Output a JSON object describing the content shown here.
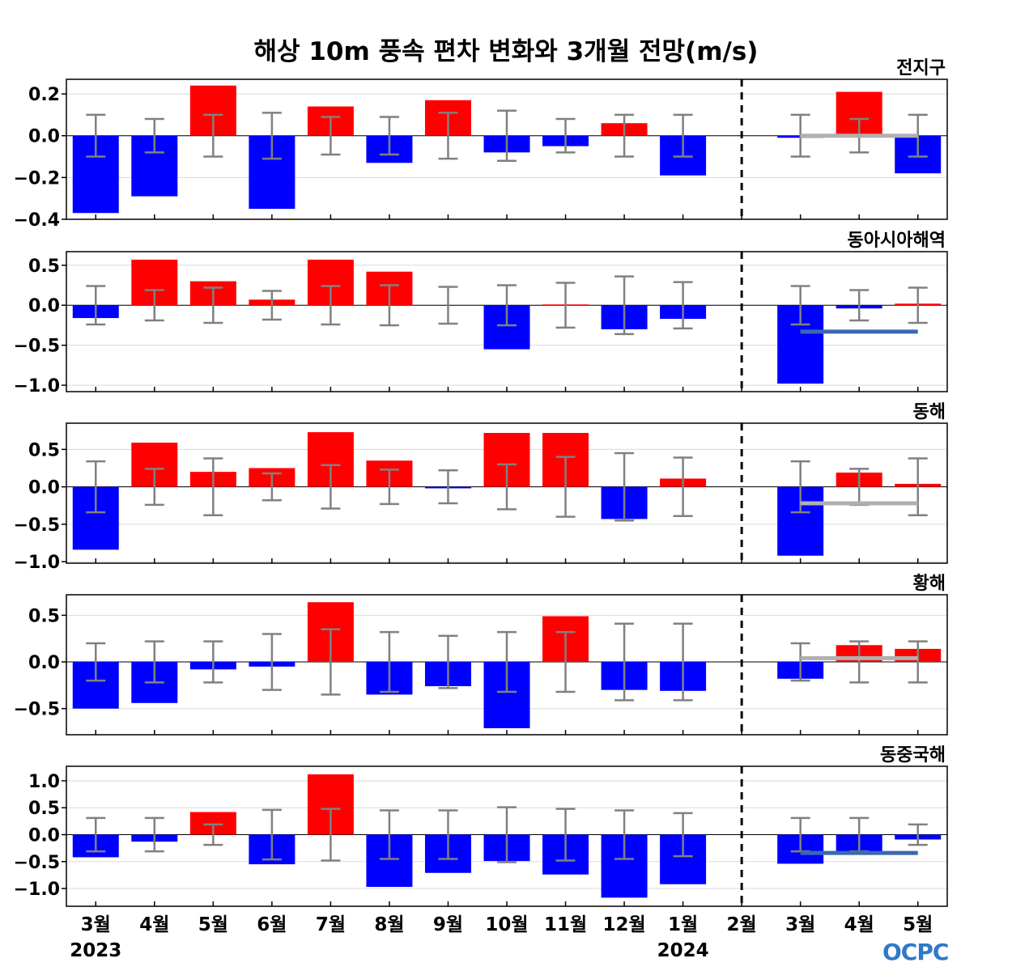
{
  "title": "해상 10m 풍속 편차 변화와 3개월 전망(m/s)",
  "logo_text": "OCPC",
  "chart_data": {
    "type": "bar",
    "categories": [
      "3월",
      "4월",
      "5월",
      "6월",
      "7월",
      "8월",
      "9월",
      "10월",
      "11월",
      "12월",
      "1월",
      "2월",
      "3월",
      "4월",
      "5월"
    ],
    "year_labels": [
      {
        "label": "2023",
        "category_index": 0
      },
      {
        "label": "2024",
        "category_index": 10
      }
    ],
    "forecast_divider_after_index": 11,
    "colors": {
      "positive": "#ff0000",
      "negative": "#0000ff",
      "error_bar": "#808080",
      "grid": "#d9d9d9",
      "divider": "#000000"
    },
    "panels": [
      {
        "name": "전지구",
        "ylim": [
          -0.4,
          0.27
        ],
        "yticks": [
          0.2,
          0.0,
          -0.2,
          -0.4
        ],
        "tick_labels": [
          "0.2",
          "0.0",
          "−0.2",
          "−0.4"
        ],
        "values": [
          -0.37,
          -0.29,
          0.24,
          -0.35,
          0.14,
          -0.13,
          0.17,
          -0.08,
          -0.05,
          0.06,
          -0.19,
          0.0,
          -0.01,
          0.21,
          -0.18
        ],
        "error_bounds": [
          0.1,
          0.08,
          0.1,
          0.11,
          0.09,
          0.09,
          0.11,
          0.12,
          0.08,
          0.1,
          0.1,
          null,
          0.1,
          0.08,
          0.1
        ],
        "forecast_line": {
          "value": 0.0,
          "from_index": 12,
          "to_index": 14,
          "color": "#b0b0b0"
        }
      },
      {
        "name": "동아시아해역",
        "ylim": [
          -1.08,
          0.67
        ],
        "yticks": [
          0.5,
          0.0,
          -0.5,
          -1.0
        ],
        "tick_labels": [
          "0.5",
          "0.0",
          "−0.5",
          "−1.0"
        ],
        "values": [
          -0.16,
          0.57,
          0.3,
          0.07,
          0.57,
          0.42,
          0.0,
          -0.55,
          0.01,
          -0.3,
          -0.17,
          0.0,
          -0.98,
          -0.04,
          0.02
        ],
        "error_bounds": [
          0.24,
          0.19,
          0.22,
          0.18,
          0.24,
          0.25,
          0.23,
          0.25,
          0.28,
          0.36,
          0.29,
          null,
          0.24,
          0.19,
          0.22
        ],
        "forecast_line": {
          "value": -0.33,
          "from_index": 12,
          "to_index": 14,
          "color": "#3a68b0"
        }
      },
      {
        "name": "동해",
        "ylim": [
          -1.02,
          0.85
        ],
        "yticks": [
          0.5,
          0.0,
          -0.5,
          -1.0
        ],
        "tick_labels": [
          "0.5",
          "0.0",
          "−0.5",
          "−1.0"
        ],
        "values": [
          -0.84,
          0.59,
          0.2,
          0.25,
          0.73,
          0.35,
          -0.02,
          0.72,
          0.72,
          -0.43,
          0.11,
          0.0,
          -0.92,
          0.19,
          0.04
        ],
        "error_bounds": [
          0.34,
          0.24,
          0.38,
          0.18,
          0.29,
          0.23,
          0.22,
          0.3,
          0.4,
          0.45,
          0.39,
          null,
          0.34,
          0.24,
          0.38
        ],
        "forecast_line": {
          "value": -0.22,
          "from_index": 12,
          "to_index": 14,
          "color": "#b0b0b0"
        }
      },
      {
        "name": "황해",
        "ylim": [
          -0.78,
          0.72
        ],
        "yticks": [
          0.5,
          0.0,
          -0.5
        ],
        "tick_labels": [
          "0.5",
          "0.0",
          "−0.5"
        ],
        "values": [
          -0.5,
          -0.44,
          -0.08,
          -0.05,
          0.64,
          -0.35,
          -0.26,
          -0.71,
          0.49,
          -0.3,
          -0.31,
          0.0,
          -0.18,
          0.18,
          0.14
        ],
        "error_bounds": [
          0.2,
          0.22,
          0.22,
          0.3,
          0.35,
          0.32,
          0.28,
          0.32,
          0.32,
          0.41,
          0.41,
          null,
          0.2,
          0.22,
          0.22
        ],
        "forecast_line": {
          "value": 0.04,
          "from_index": 12,
          "to_index": 14,
          "color": "#b0b0b0"
        }
      },
      {
        "name": "동중국해",
        "ylim": [
          -1.33,
          1.27
        ],
        "yticks": [
          1.0,
          0.5,
          0.0,
          -0.5,
          -1.0
        ],
        "tick_labels": [
          "1.0",
          "0.5",
          "0.0",
          "−0.5",
          "−1.0"
        ],
        "values": [
          -0.42,
          -0.13,
          0.42,
          -0.55,
          1.12,
          -0.97,
          -0.71,
          -0.49,
          -0.74,
          -1.17,
          -0.92,
          0.0,
          -0.54,
          -0.32,
          -0.09
        ],
        "error_bounds": [
          0.31,
          0.31,
          0.19,
          0.46,
          0.48,
          0.45,
          0.45,
          0.51,
          0.48,
          0.45,
          0.4,
          null,
          0.31,
          0.31,
          0.19
        ],
        "forecast_line": {
          "value": -0.34,
          "from_index": 12,
          "to_index": 14,
          "color": "#3a68b0"
        }
      }
    ]
  }
}
